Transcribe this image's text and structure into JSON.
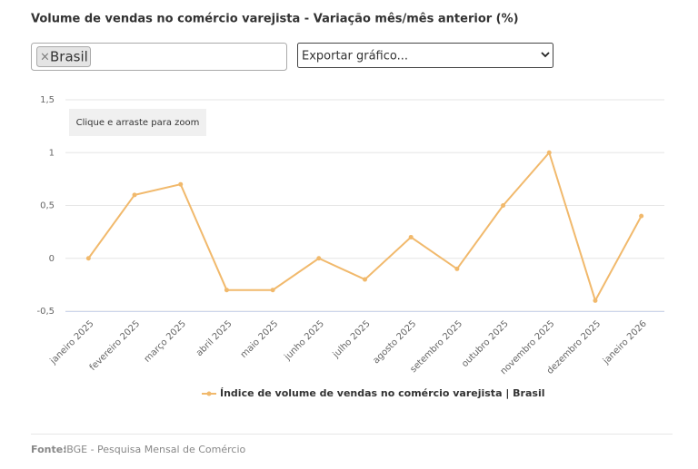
{
  "chart_data": {
    "type": "line",
    "title": "Volume de vendas no comércio varejista - Variação mês/mês anterior (%)",
    "filter_tag": "Brasil",
    "filter_remove": "×",
    "export_select": "Exportar gráfico...",
    "zoom_hint": "Clique e arraste para zoom",
    "categories": [
      "janeiro 2025",
      "fevereiro 2025",
      "março 2025",
      "abril 2025",
      "maio 2025",
      "junho 2025",
      "julho 2025",
      "agosto 2025",
      "setembro 2025",
      "outubro 2025",
      "novembro 2025",
      "dezembro 2025",
      "janeiro 2026"
    ],
    "series": [
      {
        "name": "Índice de volume de vendas no comércio varejista | Brasil",
        "color": "#f1b96c",
        "values": [
          0,
          0.6,
          0.7,
          -0.3,
          -0.3,
          0,
          -0.2,
          0.2,
          -0.1,
          0.5,
          1,
          -0.4,
          0.4
        ]
      }
    ],
    "ylim": [
      -0.5,
      1.5
    ],
    "yticks": [
      {
        "value": -0.5,
        "label": "-0,5"
      },
      0,
      {
        "value": 0.5,
        "label": "0,5"
      },
      1,
      {
        "value": 1.5,
        "label": "1,5"
      }
    ],
    "grid": true,
    "legend": "bottom",
    "source_label": "Fonte:",
    "source": "IBGE - Pesquisa Mensal de Comércio"
  }
}
